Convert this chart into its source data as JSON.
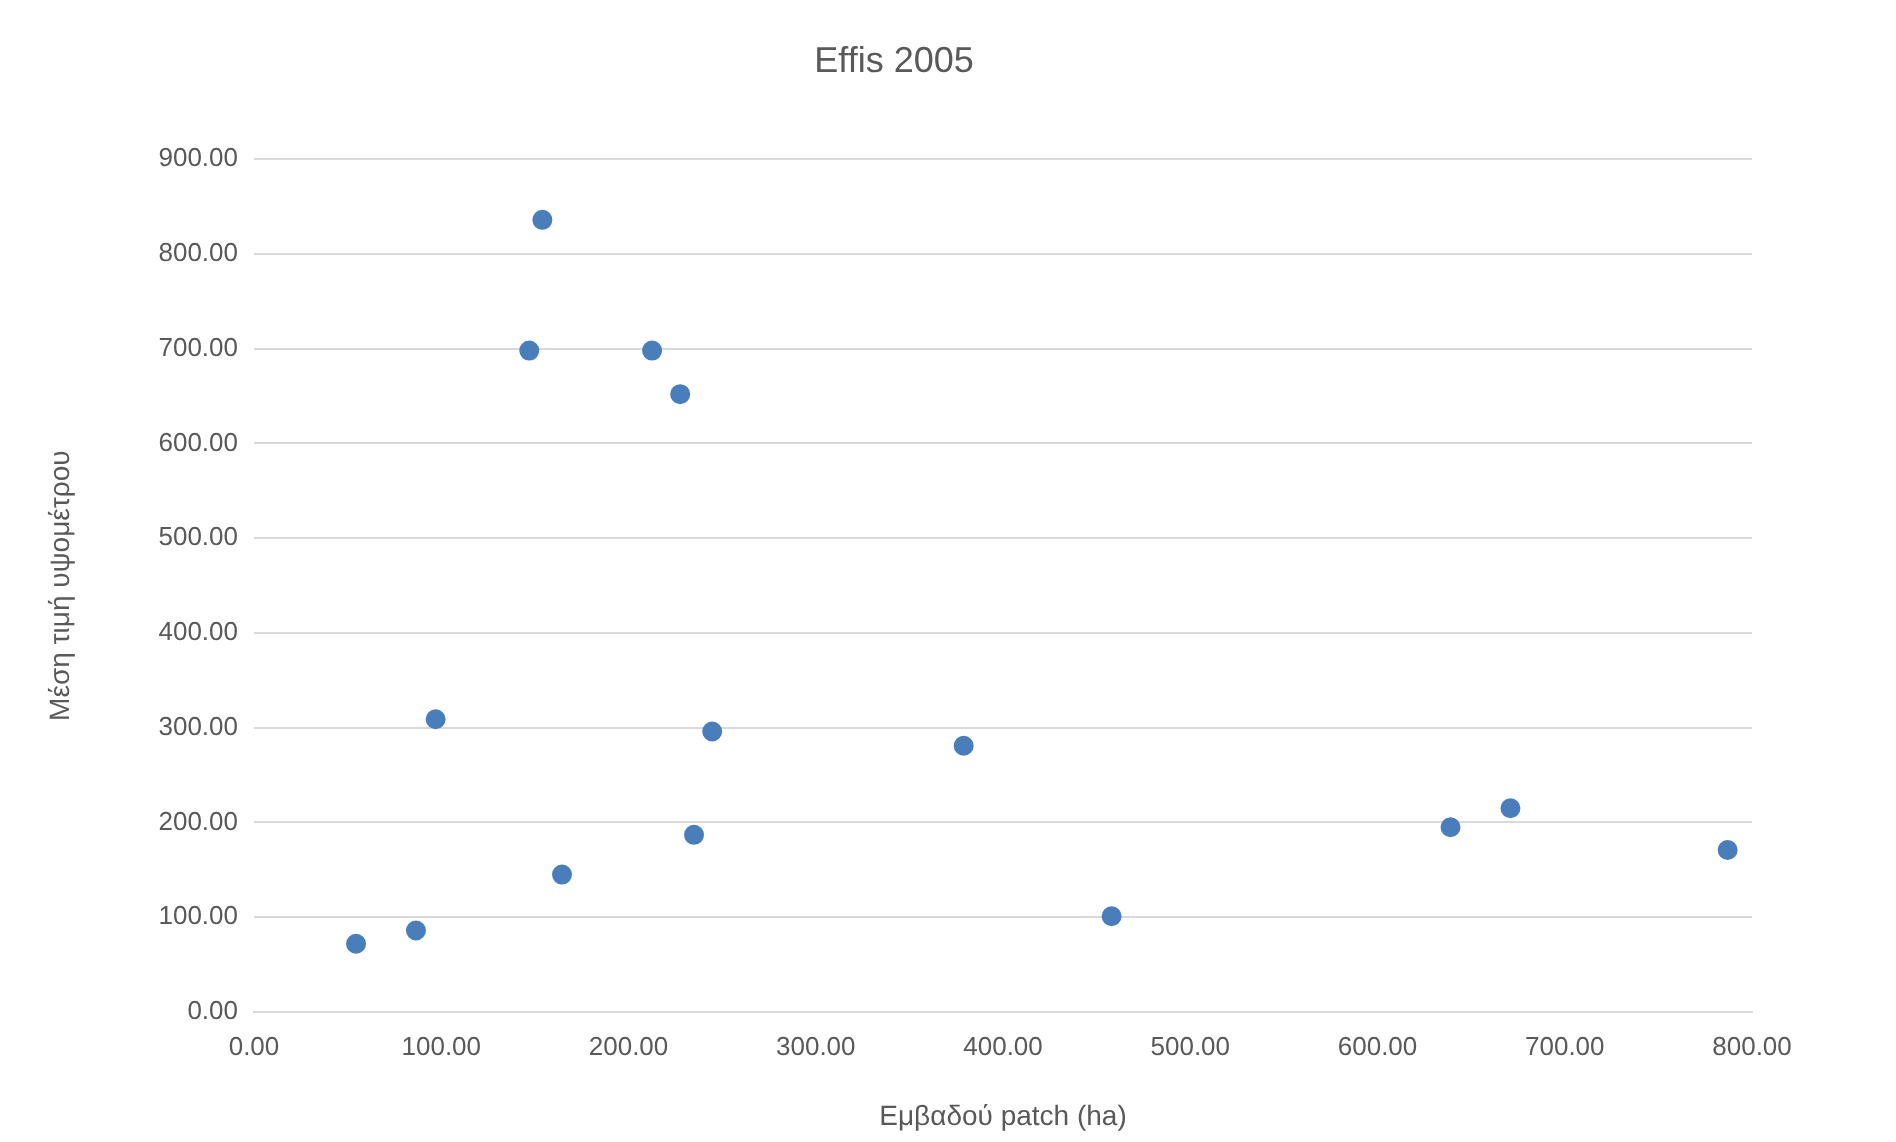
{
  "chart_data": {
    "type": "scatter",
    "title": "Effis 2005",
    "xlabel": "Εμβαδού patch (ha)",
    "ylabel": "Μέση τιμή υψομέτρου",
    "x": [
      54.5,
      86.5,
      97,
      147,
      154,
      164.5,
      212.6,
      227.6,
      235,
      244.7,
      379,
      458,
      639,
      671,
      787
    ],
    "series": [
      {
        "color": "#4a7ebb",
        "values": [
          72,
          86,
          309,
          698,
          836,
          145,
          698,
          652,
          187,
          296,
          281,
          101,
          195,
          215,
          171
        ]
      }
    ],
    "xlim": [
      0,
      800
    ],
    "xticks": [
      {
        "value": 0,
        "label": "0.00"
      },
      {
        "value": 100,
        "label": "100.00"
      },
      {
        "value": 200,
        "label": "200.00"
      },
      {
        "value": 300,
        "label": "300.00"
      },
      {
        "value": 400,
        "label": "400.00"
      },
      {
        "value": 500,
        "label": "500.00"
      },
      {
        "value": 600,
        "label": "600.00"
      },
      {
        "value": 700,
        "label": "700.00"
      },
      {
        "value": 800,
        "label": "800.00"
      }
    ],
    "ylim": [
      0,
      900
    ],
    "yticks": [
      {
        "value": 0,
        "label": "0.00"
      },
      {
        "value": 100,
        "label": "100.00"
      },
      {
        "value": 200,
        "label": "200.00"
      },
      {
        "value": 300,
        "label": "300.00"
      },
      {
        "value": 400,
        "label": "400.00"
      },
      {
        "value": 500,
        "label": "500.00"
      },
      {
        "value": 600,
        "label": "600.00"
      },
      {
        "value": 700,
        "label": "700.00"
      },
      {
        "value": 800,
        "label": "800.00"
      },
      {
        "value": 900,
        "label": "900.00"
      }
    ],
    "grid": "y",
    "marker": "circle"
  }
}
